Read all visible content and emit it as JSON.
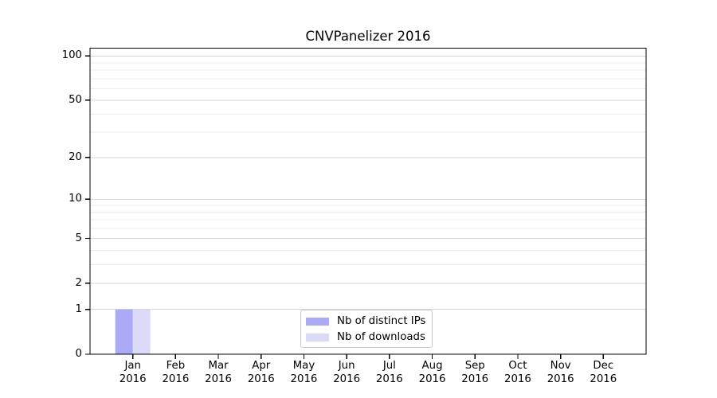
{
  "chart_data": {
    "type": "bar",
    "title": "CNVPanelizer 2016",
    "categories": [
      "Jan",
      "Feb",
      "Mar",
      "Apr",
      "May",
      "Jun",
      "Jul",
      "Aug",
      "Sep",
      "Oct",
      "Nov",
      "Dec"
    ],
    "category_year": "2016",
    "series": [
      {
        "name": "Nb of distinct IPs",
        "color": "#aaaaf7",
        "values": [
          1,
          0,
          0,
          0,
          0,
          0,
          0,
          0,
          0,
          0,
          0,
          0
        ]
      },
      {
        "name": "Nb of downloads",
        "color": "#dbdbf7",
        "values": [
          1,
          0,
          0,
          0,
          0,
          0,
          0,
          0,
          0,
          0,
          0,
          0
        ]
      }
    ],
    "yticks": [
      0,
      1,
      2,
      5,
      10,
      20,
      50,
      100
    ],
    "minor_gridlines": [
      3,
      4,
      6,
      7,
      8,
      9,
      30,
      40,
      60,
      70,
      80,
      90
    ],
    "yscale": "log10(value+1)",
    "ylim": [
      0,
      113
    ],
    "xlabel": "",
    "ylabel": "",
    "grid": "horizontal",
    "legend_position": "bottom-center"
  },
  "colors": {
    "background": "#ffffff",
    "axis": "#000000",
    "grid_major": "#d6d6d6",
    "grid_minor": "#ececec",
    "text": "#000000",
    "legend_border": "#c9c9c9"
  }
}
